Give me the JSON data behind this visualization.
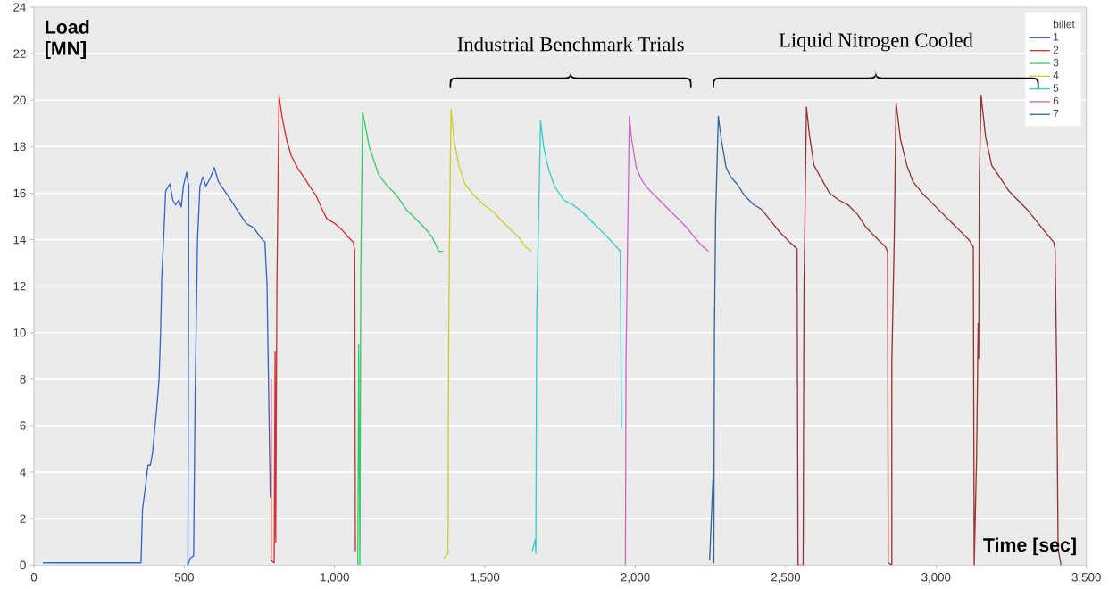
{
  "chart_data": {
    "type": "line",
    "xlabel": "Time [sec]",
    "ylabel": "Load [MN]",
    "legend_title": "billet",
    "xlim": [
      0,
      3500
    ],
    "ylim": [
      0,
      24
    ],
    "xticks": [
      0,
      500,
      {
        "value": 1000,
        "label": "1,000"
      },
      {
        "value": 1500,
        "label": "1,500"
      },
      {
        "value": 2000,
        "label": "2,000"
      },
      {
        "value": 2500,
        "label": "2,500"
      },
      {
        "value": 3000,
        "label": "3,000"
      },
      {
        "value": 3500,
        "label": "3,500"
      }
    ],
    "yticks": [
      0,
      2,
      4,
      6,
      8,
      10,
      12,
      14,
      16,
      18,
      20,
      22,
      24
    ],
    "grid": "y",
    "legend": "top right",
    "annotations": [
      "Industrial Benchmark Trials",
      "Liquid Nitrogen Cooled"
    ],
    "series": [
      {
        "name": "1",
        "color": "#3366cc",
        "x": [
          30,
          356,
          361,
          372,
          379,
          387,
          394,
          408,
          416,
          421,
          425,
          431,
          438,
          452,
          462,
          471,
          482,
          490,
          497,
          508,
          513,
          515,
          512,
          520,
          531,
          536,
          544,
          552,
          562,
          572,
          588,
          600,
          613,
          634,
          660,
          680,
          706,
          732,
          753,
          768,
          775,
          786
        ],
        "values": [
          0.1,
          0.1,
          2.4,
          3.5,
          4.3,
          4.3,
          4.8,
          6.7,
          8,
          10,
          12.4,
          14,
          16.1,
          16.4,
          15.7,
          15.5,
          15.7,
          15.4,
          16.3,
          16.9,
          16.4,
          16.4,
          0,
          0.3,
          0.4,
          7.3,
          14,
          16.3,
          16.7,
          16.3,
          16.7,
          17.1,
          16.5,
          16.1,
          15.6,
          15.2,
          14.7,
          14.5,
          14.1,
          13.9,
          12.1,
          2.9
        ]
      },
      {
        "name": "2",
        "color": "#cc3333",
        "x": [
          789,
          789,
          799,
          802,
          804,
          808,
          815,
          825,
          840,
          856,
          876,
          897,
          917,
          938,
          959,
          974,
          1000,
          1026,
          1046,
          1062,
          1067,
          1069
        ],
        "values": [
          8,
          0.2,
          0.1,
          9.2,
          1,
          12,
          20.2,
          19.3,
          18.3,
          17.6,
          17.1,
          16.7,
          16.3,
          15.9,
          15.3,
          14.9,
          14.7,
          14.4,
          14.1,
          13.9,
          13.5,
          0.6
        ]
      },
      {
        "name": "3",
        "color": "#33cc66",
        "x": [
          1077,
          1080,
          1084,
          1087,
          1093,
          1115,
          1146,
          1176,
          1207,
          1238,
          1269,
          1300,
          1325,
          1346,
          1361
        ],
        "values": [
          0,
          9.5,
          0,
          12.7,
          19.5,
          18,
          16.8,
          16.3,
          15.9,
          15.3,
          14.9,
          14.5,
          14.1,
          13.5,
          13.5
        ]
      },
      {
        "name": "4",
        "color": "#cccc33",
        "x": [
          1363,
          1377,
          1379,
          1382,
          1387,
          1397,
          1413,
          1433,
          1464,
          1496,
          1527,
          1557,
          1588,
          1613,
          1634,
          1655
        ],
        "values": [
          0.3,
          0.5,
          9.3,
          14,
          19.6,
          18.3,
          17.2,
          16.4,
          15.9,
          15.5,
          15.2,
          14.8,
          14.4,
          14.1,
          13.7,
          13.5
        ]
      },
      {
        "name": "5",
        "color": "#33cccc",
        "x": [
          1657,
          1667,
          1669,
          1672,
          1677,
          1685,
          1695,
          1710,
          1731,
          1762,
          1792,
          1823,
          1854,
          1885,
          1916,
          1936,
          1950,
          1954
        ],
        "values": [
          0.6,
          1.1,
          0.5,
          10.8,
          14,
          19.1,
          18,
          17.1,
          16.3,
          15.7,
          15.5,
          15.2,
          14.8,
          14.4,
          14,
          13.7,
          13.5,
          5.9
        ]
      },
      {
        "name": "6",
        "color": "#cc66cc",
        "x": [
          1967,
          1969,
          1973,
          1980,
          1988,
          2003,
          2024,
          2049,
          2080,
          2111,
          2142,
          2172,
          2203,
          2224,
          2244
        ],
        "values": [
          0,
          8.8,
          12.7,
          19.3,
          18.3,
          17.1,
          16.5,
          16.1,
          15.7,
          15.3,
          14.9,
          14.5,
          14,
          13.7,
          13.5
        ]
      },
      {
        "name": "7",
        "color": "#336699",
        "x": [
          2247,
          2258,
          2261,
          2263,
          2267,
          2276,
          2286,
          2302,
          2317,
          2338,
          2363,
          2394,
          2420
        ],
        "values": [
          0.2,
          3.7,
          0.1,
          10,
          15,
          19.3,
          18.3,
          17.1,
          16.7,
          16.4,
          15.9,
          15.5,
          15.3
        ]
      },
      {
        "color": "#993333",
        "x": [
          2420,
          2451,
          2482,
          2513,
          2538,
          2541,
          2558,
          2561,
          2569,
          2579,
          2594,
          2615,
          2646,
          2677,
          2707,
          2738,
          2769,
          2800,
          2831,
          2839,
          2841,
          2853,
          2853,
          2861,
          2867,
          2882,
          2903,
          2923,
          2954,
          2985,
          3016,
          3047,
          3078,
          3109,
          3124,
          3127,
          3135,
          3140,
          3142,
          3144,
          3150,
          3165,
          3185,
          3211,
          3242,
          3272,
          3303,
          3334,
          3365,
          3391,
          3396,
          3401,
          3406,
          3416
        ],
        "values": [
          15.3,
          14.8,
          14.3,
          13.9,
          13.6,
          0,
          0,
          12,
          19.7,
          18.5,
          17.2,
          16.7,
          16,
          15.7,
          15.5,
          15.1,
          14.5,
          14.1,
          13.7,
          13.5,
          0.1,
          0,
          8.7,
          14,
          19.9,
          18.3,
          17.2,
          16.5,
          16,
          15.6,
          15.2,
          14.8,
          14.4,
          14,
          13.7,
          0,
          4.7,
          10.4,
          8.9,
          16.7,
          20.2,
          18.4,
          17.2,
          16.7,
          16.1,
          15.7,
          15.3,
          14.8,
          14.3,
          13.9,
          13.6,
          8.7,
          0.7,
          0
        ]
      }
    ]
  }
}
